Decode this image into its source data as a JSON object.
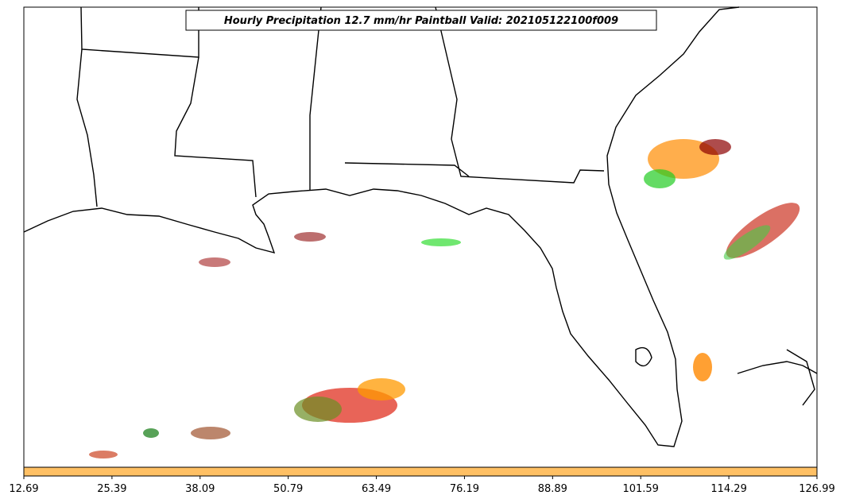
{
  "title": "Hourly Precipitation 12.7 mm/hr Paintball Valid: 202105122100f009",
  "colorbar": {
    "xlim": [
      12.69,
      126.99
    ],
    "ticks": [
      12.69,
      25.39,
      38.09,
      50.79,
      63.49,
      76.19,
      88.89,
      101.59,
      114.29,
      126.99
    ],
    "color": "#ffc064"
  }
}
